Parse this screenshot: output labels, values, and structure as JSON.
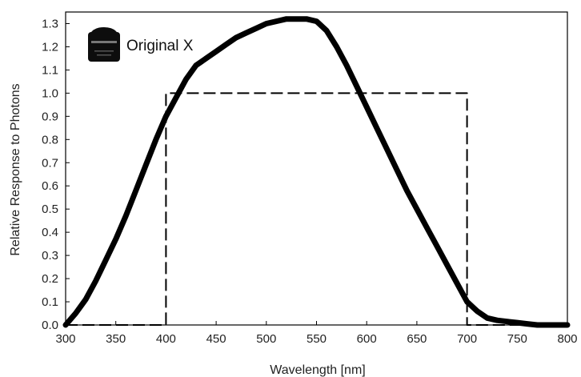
{
  "chart_data": {
    "type": "line",
    "xlabel": "Wavelength [nm]",
    "ylabel": "Relative Response to Photons",
    "xlim": [
      300,
      800
    ],
    "ylim": [
      0,
      1.35
    ],
    "x_ticks": [
      "300",
      "350",
      "400",
      "450",
      "500",
      "550",
      "600",
      "650",
      "700",
      "750",
      "800"
    ],
    "y_ticks": [
      "0.0",
      "0.1",
      "0.2",
      "0.3",
      "0.4",
      "0.5",
      "0.6",
      "0.7",
      "0.8",
      "0.9",
      "1.0",
      "1.1",
      "1.2",
      "1.3"
    ],
    "grid": false,
    "legend": {
      "position": "top-left",
      "icon": "sensor-icon"
    },
    "series": [
      {
        "name": "Original X",
        "style": "solid",
        "color": "#000000",
        "x": [
          300,
          310,
          320,
          330,
          340,
          350,
          360,
          370,
          380,
          390,
          400,
          410,
          420,
          430,
          440,
          450,
          460,
          470,
          480,
          490,
          500,
          510,
          520,
          530,
          540,
          550,
          560,
          570,
          580,
          590,
          600,
          610,
          620,
          630,
          640,
          650,
          660,
          670,
          680,
          690,
          700,
          710,
          720,
          730,
          740,
          750,
          760,
          770,
          780,
          790,
          800
        ],
        "y": [
          0.0,
          0.05,
          0.11,
          0.19,
          0.28,
          0.37,
          0.47,
          0.58,
          0.69,
          0.8,
          0.9,
          0.98,
          1.06,
          1.12,
          1.15,
          1.18,
          1.21,
          1.24,
          1.26,
          1.28,
          1.3,
          1.31,
          1.32,
          1.32,
          1.32,
          1.31,
          1.27,
          1.2,
          1.12,
          1.03,
          0.94,
          0.85,
          0.76,
          0.67,
          0.58,
          0.5,
          0.42,
          0.34,
          0.26,
          0.18,
          0.1,
          0.06,
          0.03,
          0.02,
          0.015,
          0.01,
          0.005,
          0.0,
          0.0,
          0.0,
          0.0
        ]
      },
      {
        "name": "",
        "style": "dashed",
        "color": "#000000",
        "x": [
          300,
          400,
          400,
          700,
          700,
          800
        ],
        "y": [
          0.0,
          0.0,
          1.0,
          1.0,
          0.0,
          0.0
        ]
      }
    ]
  }
}
